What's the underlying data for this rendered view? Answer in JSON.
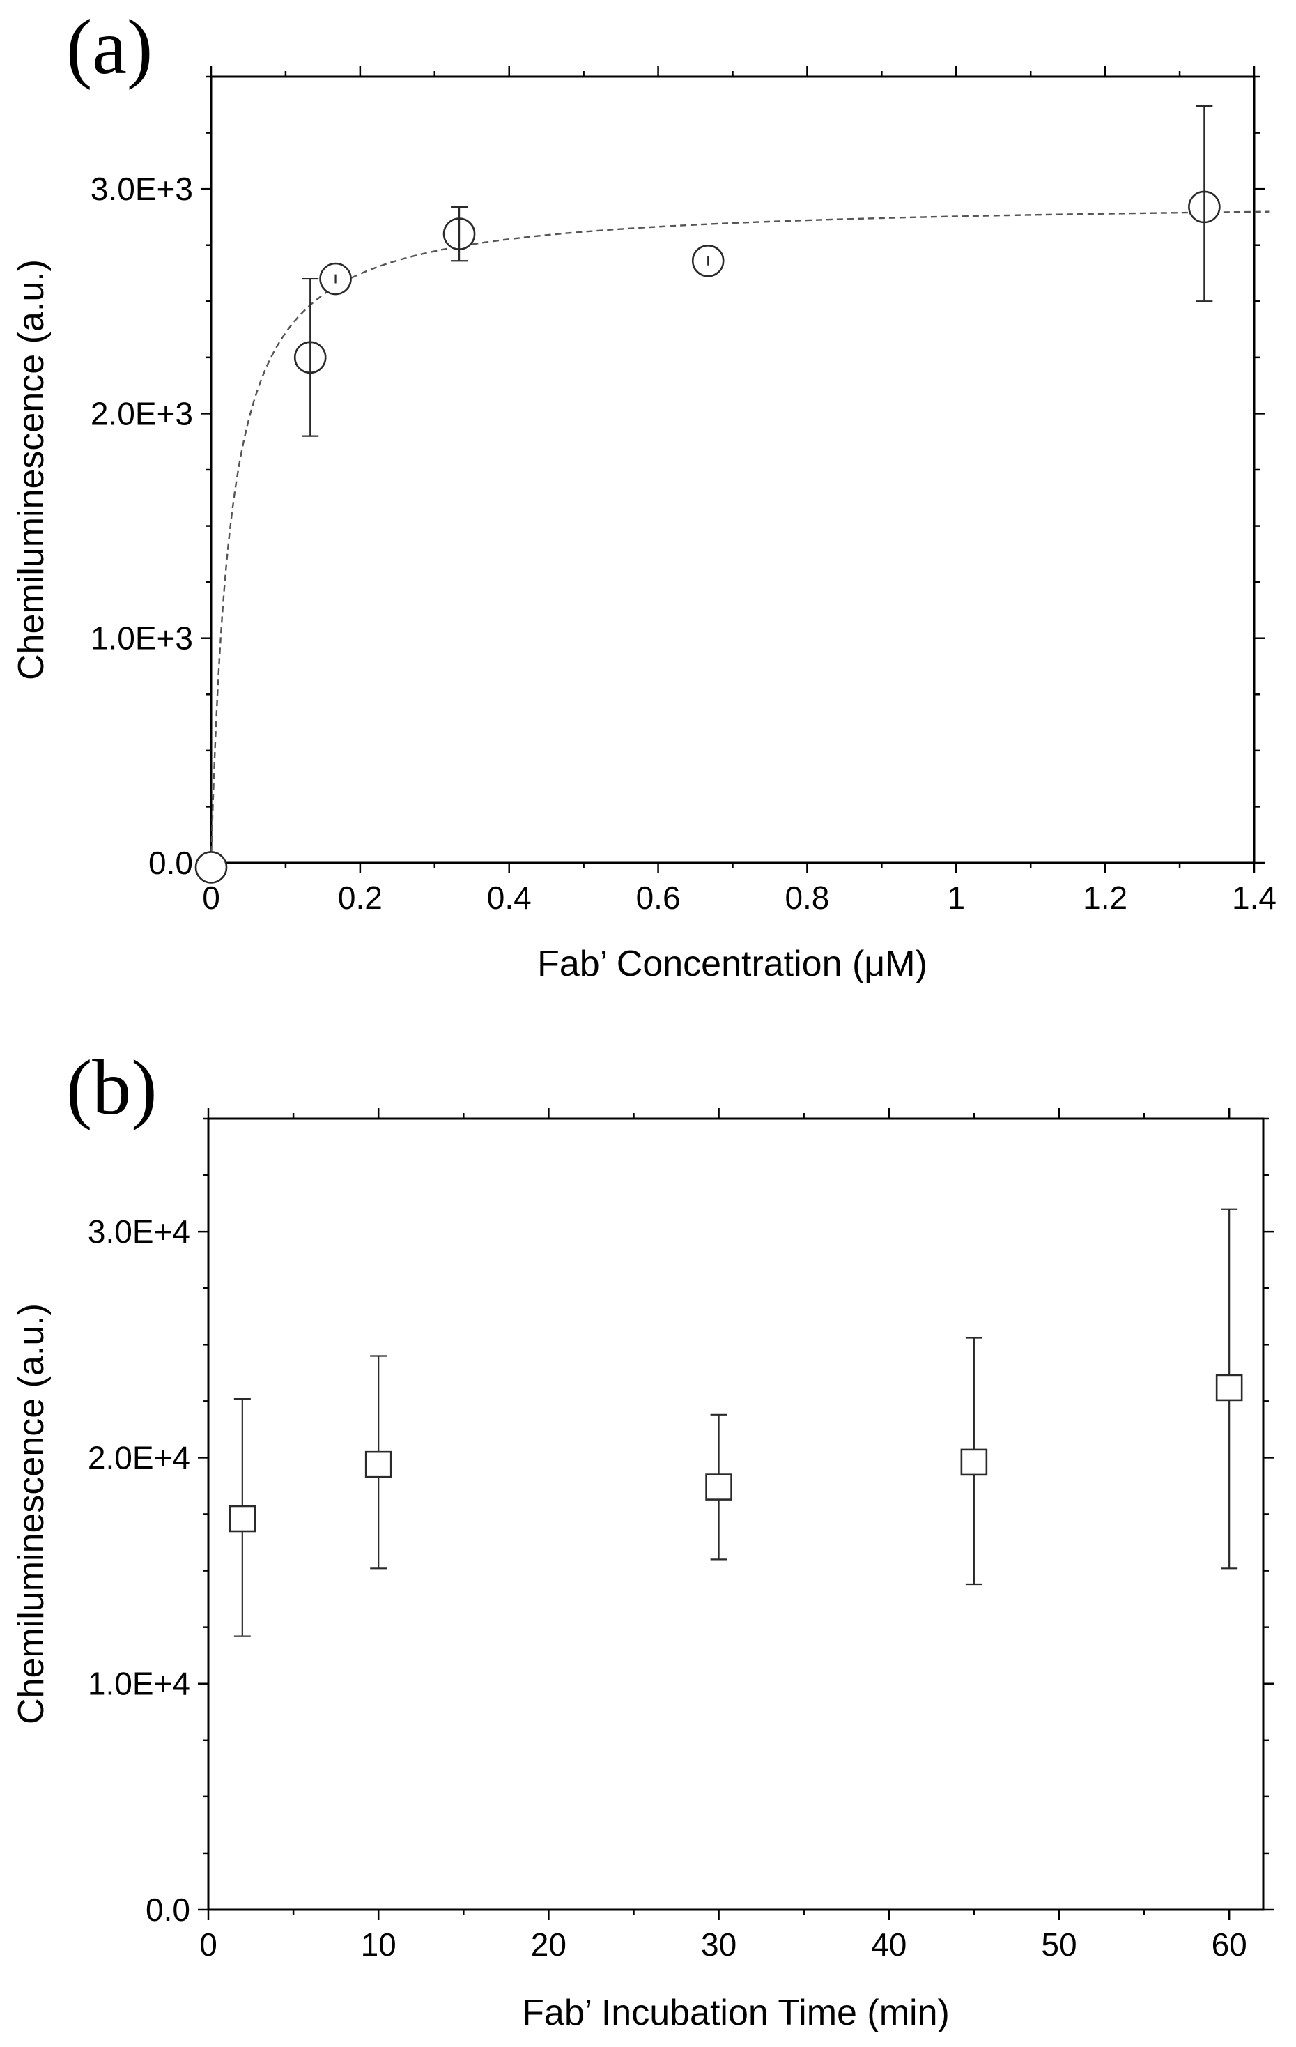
{
  "chart_data": [
    {
      "type": "scatter",
      "panel_label": "(a)",
      "xlabel": "Fab’ Concentration (μM)",
      "ylabel": "Chemiluminescence (a.u.)",
      "xlim": [
        0,
        1.4
      ],
      "ylim": [
        0,
        3500
      ],
      "x_ticks": [
        0,
        0.2,
        0.4,
        0.6,
        0.8,
        1,
        1.2,
        1.4
      ],
      "x_tick_labels": [
        "0",
        "0.2",
        "0.4",
        "0.6",
        "0.8",
        "1",
        "1.2",
        "1.4"
      ],
      "x_minor_step": 0.1,
      "y_ticks": [
        0,
        1000,
        2000,
        3000
      ],
      "y_tick_labels": [
        "0.0",
        "1.0E+3",
        "2.0E+3",
        "3.0E+3"
      ],
      "y_minor_step": 250,
      "grid": false,
      "marker": "circle",
      "series": [
        {
          "x": [
            0,
            0.133,
            0.167,
            0.333,
            0.667,
            1.333
          ],
          "y": [
            -20,
            2250,
            2600,
            2800,
            2680,
            2920
          ],
          "err_low": [
            0,
            350,
            20,
            120,
            20,
            420
          ],
          "err_high": [
            0,
            350,
            20,
            120,
            20,
            450
          ]
        }
      ],
      "fit": {
        "style": "dashed",
        "model": "saturation",
        "ymax": 2950,
        "kd": 0.025
      }
    },
    {
      "type": "scatter",
      "panel_label": "(b)",
      "xlabel": "Fab’ Incubation Time (min)",
      "ylabel": "Chemiluminescence (a.u.)",
      "xlim": [
        0,
        62
      ],
      "ylim": [
        0,
        35000
      ],
      "x_ticks": [
        0,
        10,
        20,
        30,
        40,
        50,
        60
      ],
      "x_tick_labels": [
        "0",
        "10",
        "20",
        "30",
        "40",
        "50",
        "60"
      ],
      "x_minor_step": 5,
      "y_ticks": [
        0,
        10000,
        20000,
        30000
      ],
      "y_tick_labels": [
        "0.0",
        "1.0E+4",
        "2.0E+4",
        "3.0E+4"
      ],
      "y_minor_step": 2500,
      "grid": false,
      "marker": "square",
      "series": [
        {
          "x": [
            2,
            10,
            30,
            45,
            60
          ],
          "y": [
            17300,
            19700,
            18700,
            19800,
            23100
          ],
          "err_low": [
            5200,
            4600,
            3200,
            5400,
            8000
          ],
          "err_high": [
            5300,
            4800,
            3200,
            5500,
            7900
          ]
        }
      ]
    }
  ]
}
